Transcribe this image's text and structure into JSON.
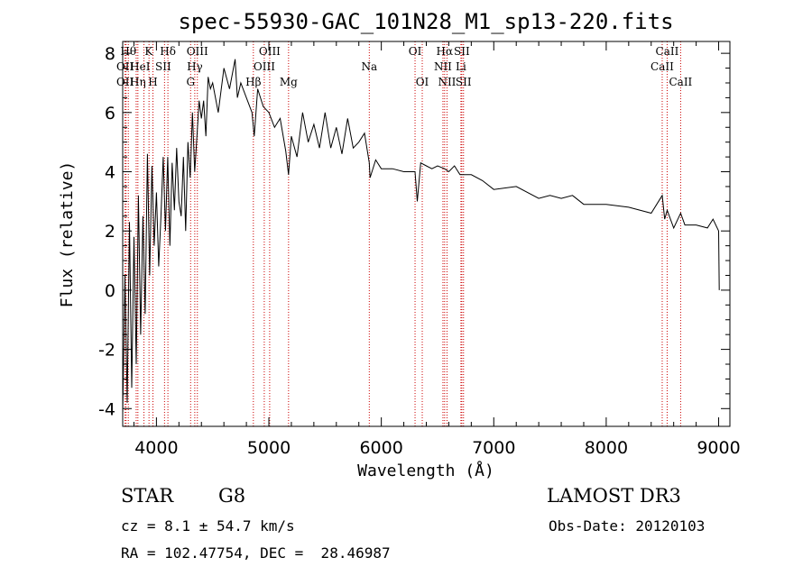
{
  "chart_data": {
    "type": "line",
    "title": "spec-55930-GAC_101N28_M1_sp13-220.fits",
    "xlabel": "Wavelength (Å)",
    "ylabel": "Flux (relative)",
    "xlim": [
      3700,
      9100
    ],
    "ylim": [
      -4.6,
      8.4
    ],
    "xticks": [
      4000,
      5000,
      6000,
      7000,
      8000,
      9000
    ],
    "yticks": [
      -4,
      -2,
      0,
      2,
      4,
      6,
      8
    ],
    "grid": false,
    "series": [
      {
        "name": "spectrum",
        "x": [
          3700,
          3720,
          3740,
          3760,
          3780,
          3800,
          3820,
          3840,
          3860,
          3880,
          3900,
          3920,
          3940,
          3960,
          3980,
          4000,
          4020,
          4040,
          4060,
          4080,
          4100,
          4120,
          4140,
          4160,
          4180,
          4200,
          4220,
          4240,
          4260,
          4280,
          4300,
          4320,
          4340,
          4360,
          4380,
          4400,
          4420,
          4440,
          4460,
          4480,
          4500,
          4550,
          4600,
          4650,
          4700,
          4720,
          4750,
          4800,
          4850,
          4870,
          4900,
          4950,
          5000,
          5050,
          5100,
          5150,
          5175,
          5200,
          5250,
          5300,
          5350,
          5400,
          5450,
          5500,
          5550,
          5600,
          5650,
          5700,
          5750,
          5800,
          5850,
          5893,
          5900,
          5950,
          6000,
          6100,
          6200,
          6300,
          6320,
          6350,
          6400,
          6450,
          6500,
          6563,
          6600,
          6650,
          6700,
          6800,
          6900,
          7000,
          7200,
          7400,
          7500,
          7600,
          7700,
          7800,
          8000,
          8200,
          8400,
          8498,
          8520,
          8542,
          8600,
          8662,
          8700,
          8800,
          8900,
          8950,
          9000,
          9005
        ],
        "values": [
          -4.2,
          0.5,
          -3.8,
          2.3,
          -3.3,
          1.8,
          -2.5,
          3.2,
          -1.5,
          2.5,
          -0.8,
          4.6,
          0.5,
          4.2,
          1.5,
          3.3,
          0.8,
          2.5,
          4.5,
          2.0,
          4.5,
          1.5,
          4.3,
          2.7,
          4.8,
          3.0,
          2.5,
          4.5,
          2.0,
          5.0,
          3.8,
          6.0,
          4.0,
          5.2,
          6.4,
          5.8,
          6.4,
          5.2,
          7.2,
          6.8,
          7.0,
          6.0,
          7.5,
          6.8,
          7.8,
          6.5,
          7.0,
          6.5,
          6.0,
          5.2,
          6.8,
          6.2,
          6.0,
          5.5,
          5.8,
          4.7,
          3.9,
          5.2,
          4.5,
          6.0,
          5.0,
          5.6,
          4.8,
          6.0,
          4.8,
          5.5,
          4.6,
          5.8,
          4.8,
          5.0,
          5.3,
          4.3,
          3.8,
          4.4,
          4.1,
          4.1,
          4.0,
          4.0,
          3.0,
          4.3,
          4.2,
          4.1,
          4.2,
          4.1,
          4.0,
          4.2,
          3.9,
          3.9,
          3.7,
          3.4,
          3.5,
          3.1,
          3.2,
          3.1,
          3.2,
          2.9,
          2.9,
          2.8,
          2.6,
          3.2,
          2.4,
          2.7,
          2.1,
          2.6,
          2.2,
          2.2,
          2.1,
          2.4,
          2.0,
          0.0
        ]
      }
    ],
    "lines": [
      {
        "x": 3721,
        "labels": [
          "OII"
        ]
      },
      {
        "x": 3730,
        "labels": [
          "OII"
        ]
      },
      {
        "x": 3750,
        "labels": [
          "Hθ"
        ]
      },
      {
        "x": 3820,
        "labels": [
          "HeI"
        ]
      },
      {
        "x": 3835,
        "labels": [
          "Hη"
        ]
      },
      {
        "x": 3889,
        "labels": [
          "SII"
        ]
      },
      {
        "x": 3934,
        "labels": [
          "K"
        ]
      },
      {
        "x": 3969,
        "labels": [
          "H"
        ]
      },
      {
        "x": 4072,
        "labels": [
          "SII"
        ]
      },
      {
        "x": 4102,
        "labels": [
          "Hδ"
        ]
      },
      {
        "x": 4304,
        "labels": [
          "G"
        ]
      },
      {
        "x": 4341,
        "labels": [
          "Hγ"
        ]
      },
      {
        "x": 4364,
        "labels": [
          "OIII"
        ]
      },
      {
        "x": 4862,
        "labels": [
          "Hβ"
        ]
      },
      {
        "x": 4959,
        "labels": [
          "OIII"
        ]
      },
      {
        "x": 5007,
        "labels": [
          "OIII"
        ]
      },
      {
        "x": 5175,
        "labels": [
          "Mg"
        ]
      },
      {
        "x": 5893,
        "labels": [
          "Na"
        ]
      },
      {
        "x": 6300,
        "labels": [
          "OI"
        ]
      },
      {
        "x": 6364,
        "labels": [
          "OI"
        ]
      },
      {
        "x": 6548,
        "labels": [
          "NII"
        ]
      },
      {
        "x": 6563,
        "labels": [
          "Hα"
        ]
      },
      {
        "x": 6584,
        "labels": [
          "NII"
        ]
      },
      {
        "x": 6708,
        "labels": [
          "Li"
        ]
      },
      {
        "x": 6716,
        "labels": [
          "SII"
        ]
      },
      {
        "x": 6731,
        "labels": [
          "SII"
        ]
      },
      {
        "x": 8498,
        "labels": [
          "CaII"
        ]
      },
      {
        "x": 8542,
        "labels": [
          "CaII"
        ]
      },
      {
        "x": 8662,
        "labels": [
          "CaII"
        ]
      }
    ],
    "line_labels": [
      {
        "text": "Hθ",
        "x": 3750,
        "row": 1
      },
      {
        "text": "K",
        "x": 3932,
        "row": 1
      },
      {
        "text": "Hδ",
        "x": 4102,
        "row": 1
      },
      {
        "text": "OIII",
        "x": 4364,
        "row": 1
      },
      {
        "text": "OIII",
        "x": 5007,
        "row": 1
      },
      {
        "text": "OI",
        "x": 6300,
        "row": 1
      },
      {
        "text": "Hα",
        "x": 6563,
        "row": 1
      },
      {
        "text": "SII",
        "x": 6716,
        "row": 1
      },
      {
        "text": "CaII",
        "x": 8542,
        "row": 1
      },
      {
        "text": "OII",
        "x": 3721,
        "row": 2
      },
      {
        "text": "HeI",
        "x": 3855,
        "row": 2
      },
      {
        "text": "SII",
        "x": 4060,
        "row": 2
      },
      {
        "text": "Hγ",
        "x": 4341,
        "row": 2
      },
      {
        "text": "OIII",
        "x": 4959,
        "row": 2
      },
      {
        "text": "Na",
        "x": 5893,
        "row": 2
      },
      {
        "text": "NII",
        "x": 6548,
        "row": 2
      },
      {
        "text": "Li",
        "x": 6708,
        "row": 2
      },
      {
        "text": "CaII",
        "x": 8498,
        "row": 2
      },
      {
        "text": "OII",
        "x": 3721,
        "row": 3
      },
      {
        "text": "Hη",
        "x": 3835,
        "row": 3
      },
      {
        "text": "H",
        "x": 3969,
        "row": 3
      },
      {
        "text": "G",
        "x": 4304,
        "row": 3
      },
      {
        "text": "Hβ",
        "x": 4862,
        "row": 3
      },
      {
        "text": "Mg",
        "x": 5175,
        "row": 3
      },
      {
        "text": "OI",
        "x": 6364,
        "row": 3
      },
      {
        "text": "NII",
        "x": 6584,
        "row": 3
      },
      {
        "text": "SII",
        "x": 6731,
        "row": 3
      },
      {
        "text": "CaII",
        "x": 8662,
        "row": 3
      }
    ],
    "colors": {
      "spectrum": "#000000",
      "lines": "#cc0000",
      "axes": "#000000"
    }
  },
  "info": {
    "class": "STAR",
    "subclass": "G8",
    "survey": "LAMOST DR3",
    "cz": "cz = 8.1 ± 54.7 km/s",
    "obs_date": "Obs-Date: 20120103",
    "coords": "RA = 102.47754, DEC =  28.46987"
  }
}
